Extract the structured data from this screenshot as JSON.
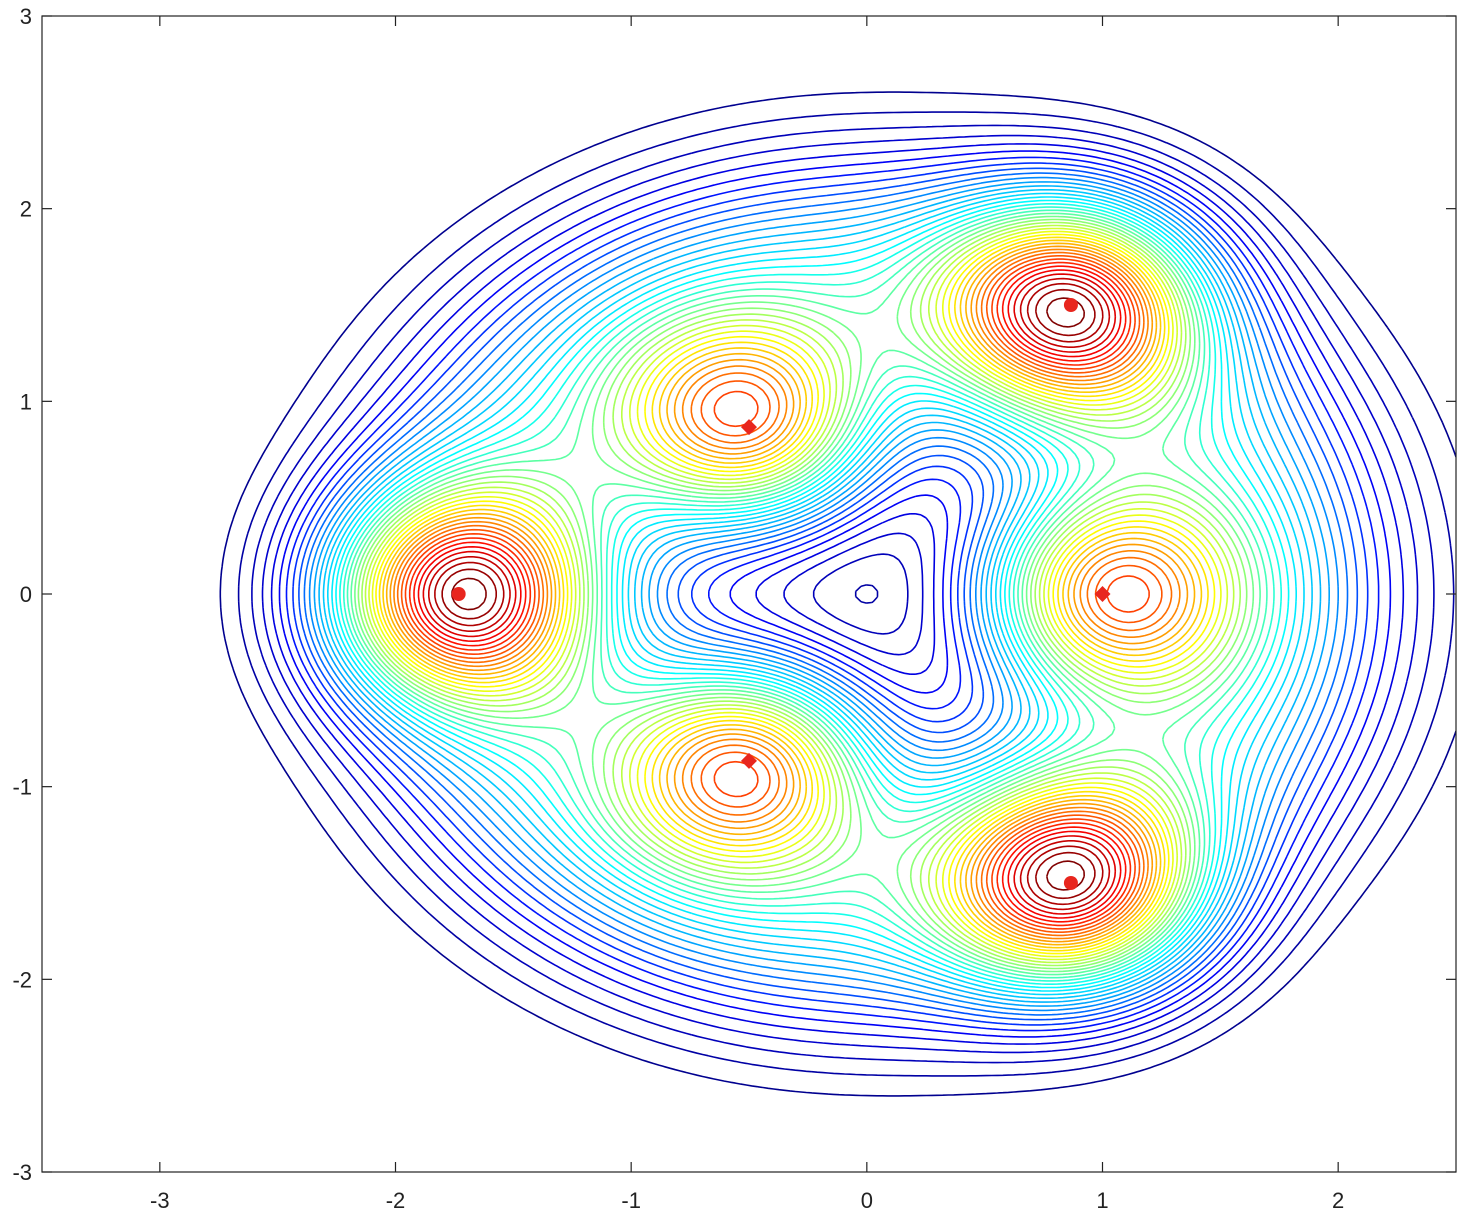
{
  "chart_data": {
    "type": "contour",
    "title": "",
    "xlabel": "",
    "ylabel": "",
    "xlim": [
      -3.5,
      2.5
    ],
    "ylim": [
      -3,
      3
    ],
    "xticks": [
      -3,
      -2,
      -1,
      0,
      1,
      2
    ],
    "yticks": [
      -3,
      -2,
      -1,
      0,
      1,
      2,
      3
    ],
    "xtick_labels": [
      "-3",
      "-2",
      "-1",
      "0",
      "1",
      "2"
    ],
    "ytick_labels": [
      "-3",
      "-2",
      "-1",
      "0",
      "1",
      "2",
      "3"
    ],
    "colormap": [
      "#00008f",
      "#0000ff",
      "#00a0ff",
      "#00ffff",
      "#80ff80",
      "#ffff00",
      "#ff8000",
      "#ff0000",
      "#800000"
    ],
    "marker_color": "#e8261e",
    "markers": [
      {
        "x": -1.732,
        "y": 0,
        "shape": "circle"
      },
      {
        "x": 0.866,
        "y": 1.5,
        "shape": "circle"
      },
      {
        "x": 0.866,
        "y": -1.5,
        "shape": "circle"
      },
      {
        "x": -0.5,
        "y": 0.866,
        "shape": "diamond"
      },
      {
        "x": -0.5,
        "y": -0.866,
        "shape": "diamond"
      },
      {
        "x": 1,
        "y": 0,
        "shape": "diamond"
      }
    ]
  }
}
